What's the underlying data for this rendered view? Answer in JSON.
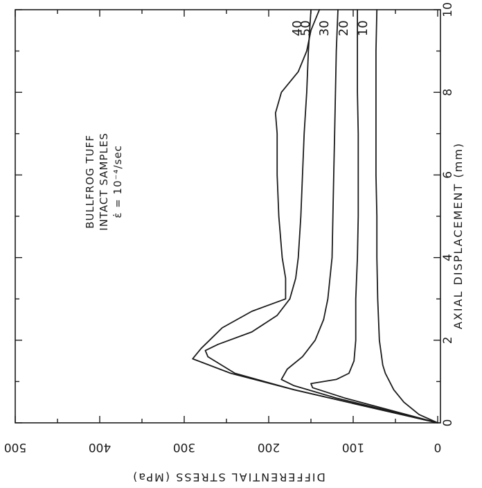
{
  "chart_data": {
    "type": "line",
    "orientation": "rotated-90",
    "annotation": [
      "BULLFROG TUFF",
      "INTACT SAMPLES",
      "ε̇ = 10⁻⁴/sec"
    ],
    "xlabel": "AXIAL DISPLACEMENT (mm)",
    "ylabel": "DIFFERENTIAL STRESS (MPa)",
    "xlim": [
      0,
      10
    ],
    "ylim": [
      0,
      500
    ],
    "x_ticks": [
      0,
      2,
      4,
      6,
      8,
      10
    ],
    "y_ticks": [
      0,
      100,
      200,
      300,
      400,
      500
    ],
    "series": [
      {
        "name": "10",
        "points": [
          [
            0,
            0
          ],
          [
            0.2,
            22
          ],
          [
            0.5,
            40
          ],
          [
            0.8,
            52
          ],
          [
            1.2,
            62
          ],
          [
            1.4,
            65
          ],
          [
            2,
            69
          ],
          [
            3,
            71
          ],
          [
            4,
            72
          ],
          [
            5,
            72
          ],
          [
            6,
            73
          ],
          [
            7,
            73
          ],
          [
            8,
            73
          ],
          [
            9,
            73
          ],
          [
            10,
            72
          ]
        ]
      },
      {
        "name": "20",
        "points": [
          [
            0,
            0
          ],
          [
            0.3,
            55
          ],
          [
            0.6,
            110
          ],
          [
            0.85,
            148
          ],
          [
            0.95,
            150
          ],
          [
            1.05,
            120
          ],
          [
            1.2,
            105
          ],
          [
            1.5,
            99
          ],
          [
            2,
            97
          ],
          [
            3,
            97
          ],
          [
            4,
            95
          ],
          [
            5,
            94
          ],
          [
            6,
            94
          ],
          [
            7,
            94
          ],
          [
            8,
            95
          ],
          [
            9,
            95
          ],
          [
            10,
            95
          ]
        ]
      },
      {
        "name": "30",
        "points": [
          [
            0,
            0
          ],
          [
            0.3,
            60
          ],
          [
            0.6,
            120
          ],
          [
            0.9,
            170
          ],
          [
            1.05,
            185
          ],
          [
            1.3,
            178
          ],
          [
            1.6,
            160
          ],
          [
            2,
            145
          ],
          [
            2.5,
            135
          ],
          [
            3,
            130
          ],
          [
            4,
            125
          ],
          [
            5,
            124
          ],
          [
            6,
            123
          ],
          [
            7,
            122
          ],
          [
            8,
            121
          ],
          [
            9,
            120
          ],
          [
            10,
            118
          ]
        ]
      },
      {
        "name": "40",
        "points": [
          [
            0,
            0
          ],
          [
            0.4,
            85
          ],
          [
            0.8,
            170
          ],
          [
            1.2,
            240
          ],
          [
            1.6,
            272
          ],
          [
            1.75,
            275
          ],
          [
            1.9,
            260
          ],
          [
            2.2,
            220
          ],
          [
            2.6,
            190
          ],
          [
            3,
            175
          ],
          [
            3.5,
            168
          ],
          [
            4,
            165
          ],
          [
            5,
            162
          ],
          [
            6,
            160
          ],
          [
            7,
            158
          ],
          [
            8,
            155
          ],
          [
            9,
            153
          ],
          [
            10,
            150
          ]
        ]
      },
      {
        "name": "50",
        "points": [
          [
            0,
            0
          ],
          [
            0.4,
            85
          ],
          [
            0.8,
            170
          ],
          [
            1.2,
            245
          ],
          [
            1.55,
            290
          ],
          [
            1.8,
            280
          ],
          [
            2,
            270
          ],
          [
            2.3,
            255
          ],
          [
            2.7,
            220
          ],
          [
            3,
            180
          ],
          [
            3.5,
            180
          ],
          [
            4,
            184
          ],
          [
            5,
            188
          ],
          [
            6,
            190
          ],
          [
            7,
            190
          ],
          [
            7.5,
            192
          ],
          [
            8,
            185
          ],
          [
            8.5,
            165
          ],
          [
            9,
            155
          ],
          [
            9.5,
            150
          ],
          [
            10,
            140
          ]
        ]
      }
    ],
    "series_labels_order": [
      "50",
      "40",
      "30",
      "20",
      "10"
    ]
  }
}
